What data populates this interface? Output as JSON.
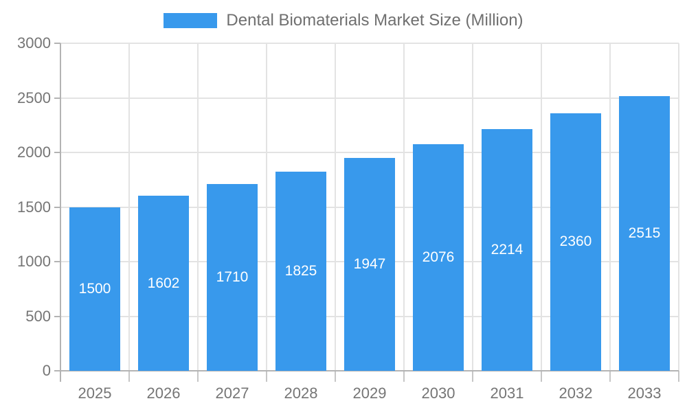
{
  "legend": {
    "label": "Dental Biomaterials Market Size (Million)"
  },
  "chart_data": {
    "type": "bar",
    "title": "Dental Biomaterials Market Size (Million)",
    "categories": [
      "2025",
      "2026",
      "2027",
      "2028",
      "2029",
      "2030",
      "2031",
      "2032",
      "2033"
    ],
    "values": [
      1500,
      1602,
      1710,
      1825,
      1947,
      2076,
      2214,
      2360,
      2515
    ],
    "xlabel": "",
    "ylabel": "",
    "ylim": [
      0,
      3000
    ],
    "ytick_step": 500,
    "yticks": [
      0,
      500,
      1000,
      1500,
      2000,
      2500,
      3000
    ],
    "grid": true,
    "legend_position": "top",
    "bar_labels_inside": true,
    "colors": {
      "bar": "#3899ec",
      "grid": "#e3e3e3",
      "axis": "#b3b3b3",
      "tick": "#c6c6c6",
      "text": "#757575",
      "bar_label": "#ffffff"
    }
  }
}
